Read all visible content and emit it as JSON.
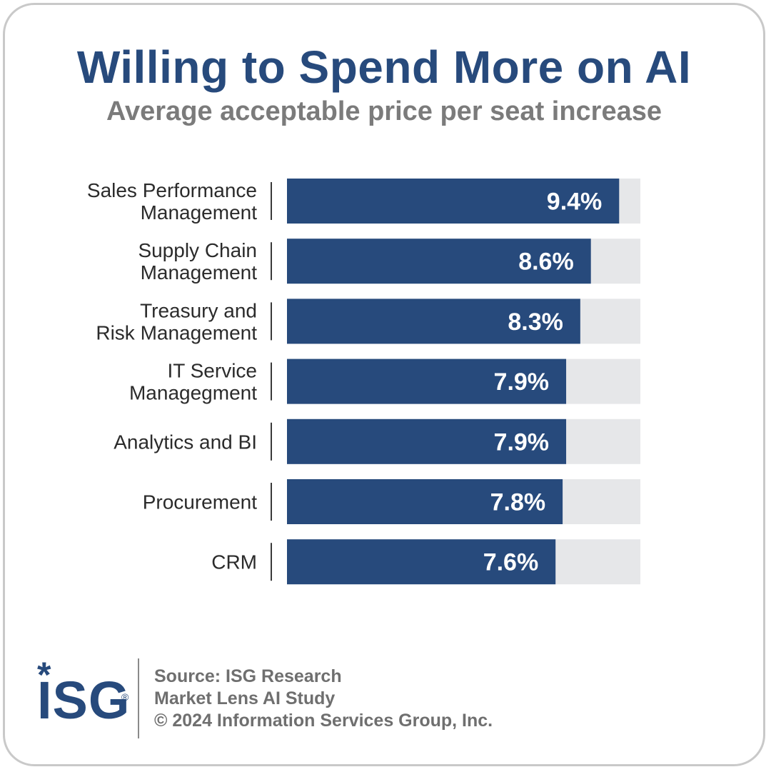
{
  "header": {
    "title": "Willing to Spend More on AI",
    "subtitle": "Average acceptable price per seat increase"
  },
  "chart_data": {
    "type": "bar",
    "orientation": "horizontal",
    "categories": [
      [
        "Sales Performance",
        "Management"
      ],
      [
        "Supply Chain",
        "Management"
      ],
      [
        "Treasury and",
        "Risk Management"
      ],
      [
        "IT Service",
        "Managegment"
      ],
      [
        "Analytics and BI"
      ],
      [
        "Procurement"
      ],
      [
        "CRM"
      ]
    ],
    "values": [
      9.4,
      8.6,
      8.3,
      7.9,
      7.9,
      7.8,
      7.6
    ],
    "value_labels": [
      "9.4%",
      "8.6%",
      "8.3%",
      "7.9%",
      "7.9%",
      "7.8%",
      "7.6%"
    ],
    "xlim": [
      0,
      10
    ],
    "bar_color": "#274a7c",
    "track_color": "#e6e7e9",
    "label_color": "#ffffff"
  },
  "footer": {
    "logo_text": "ISG",
    "source_lines": [
      "Source: ISG Research",
      "Market Lens AI Study",
      "© 2024 Information Services Group, Inc."
    ]
  }
}
